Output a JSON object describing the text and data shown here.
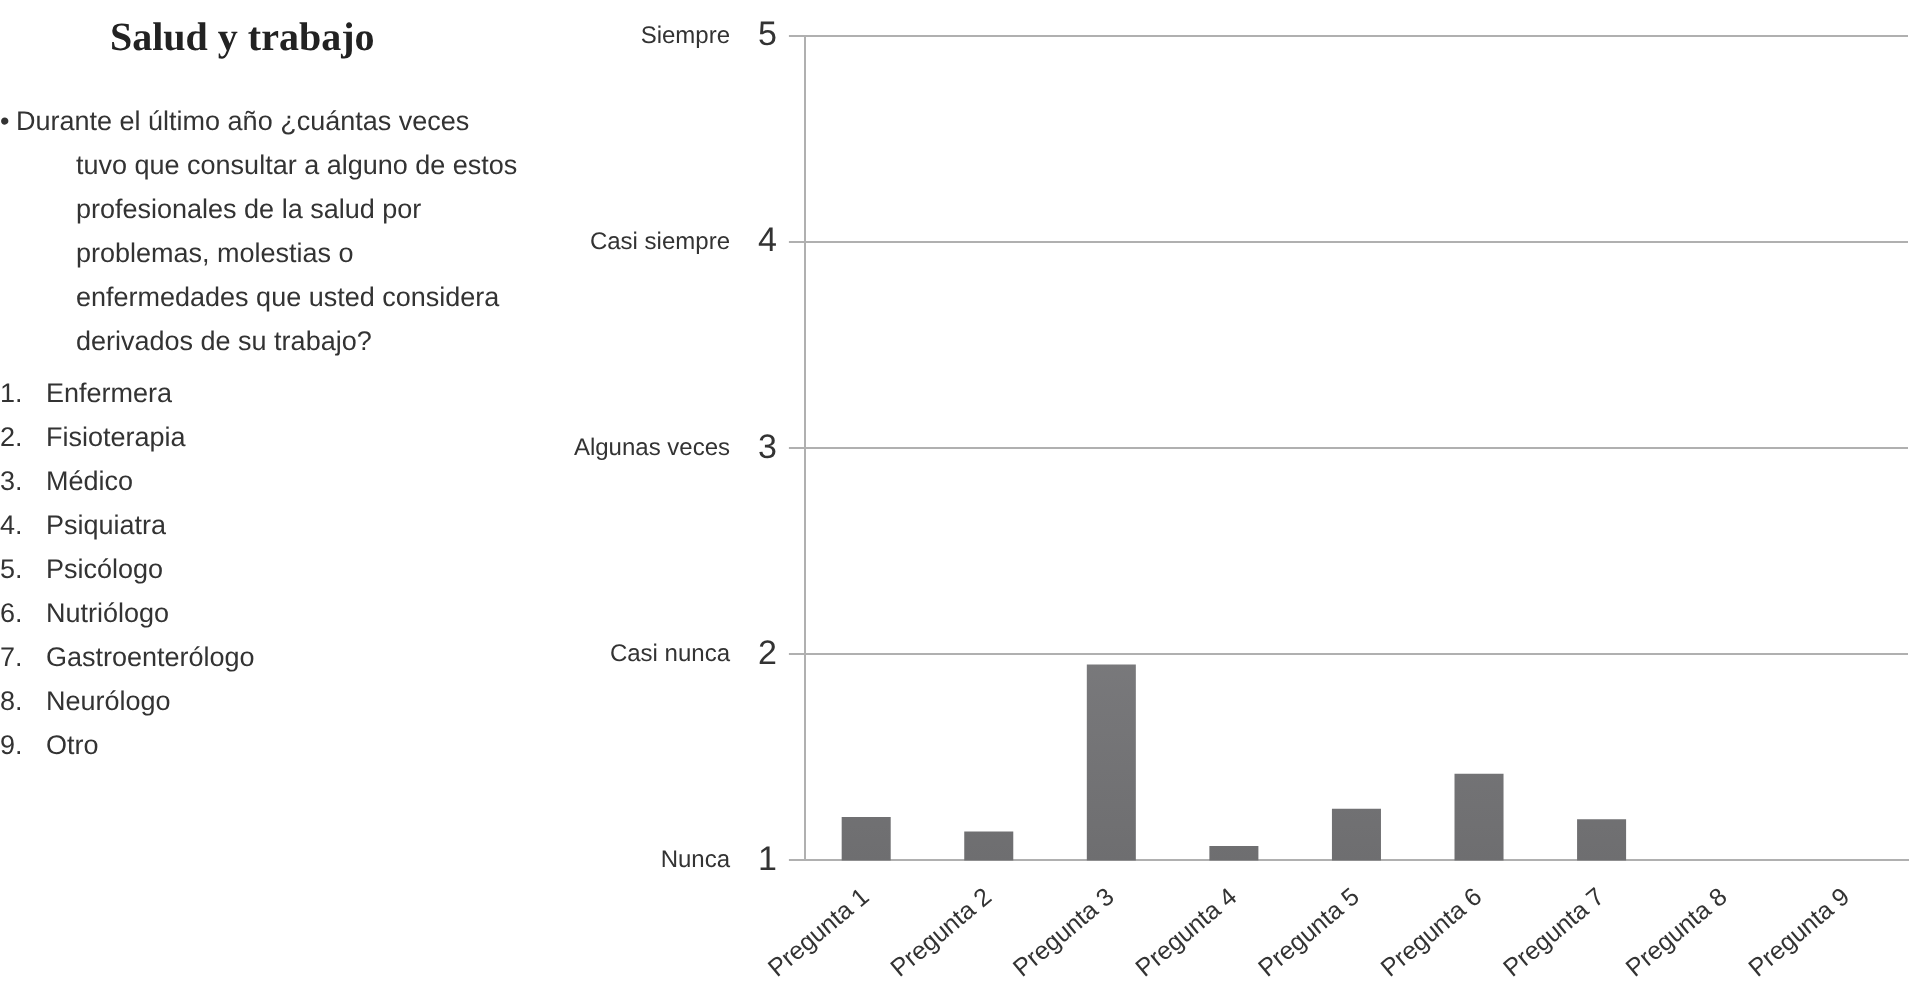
{
  "chart_data": {
    "type": "bar",
    "title": "Salud y trabajo",
    "annotations": [
      "• Durante el último año ¿cuántas veces tuvo que consultar a alguno de estos profesionales de la salud por problemas, molestias o enfermedades que usted considera derivados de su trabajo?",
      "1. Enfermera",
      "2. Fisioterapia",
      "3. Médico",
      "4. Psiquiatra",
      "5. Psicólogo",
      "6. Nutriólogo",
      "7. Gastroenterólogo",
      "8. Neurólogo",
      "9. Otro",
      "Nunca",
      "Casi nunca",
      "Algunas veces",
      "Casi siempre",
      "Siempre"
    ],
    "categories": [
      "Pregunta 1",
      "Pregunta 2",
      "Pregunta 3",
      "Pregunta 4",
      "Pregunta 5",
      "Pregunta 6",
      "Pregunta 7",
      "Pregunta 8",
      "Pregunta 9"
    ],
    "values": [
      1.21,
      1.14,
      1.95,
      1.07,
      1.25,
      1.42,
      1.2,
      null,
      null
    ],
    "color": "#6e6e70",
    "ylim": [
      1,
      5
    ],
    "yticks": [
      1,
      2,
      3,
      4,
      5
    ],
    "grid": "y"
  }
}
